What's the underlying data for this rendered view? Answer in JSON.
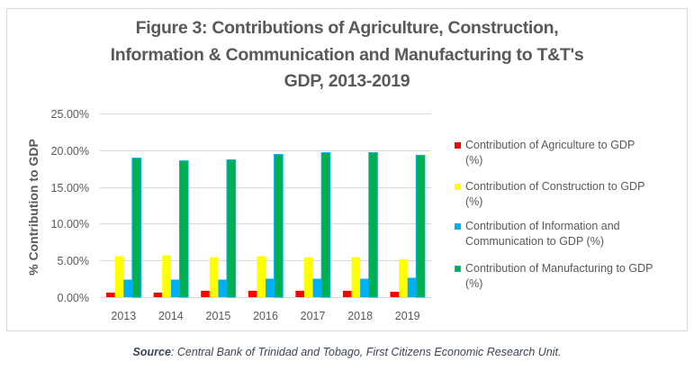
{
  "chart_data": {
    "type": "bar",
    "title": "Figure 3: Contributions of Agriculture, Construction, Information & Communication and Manufacturing to T&T's GDP, 2013-2019",
    "title_lines": [
      "Figure 3: Contributions of Agriculture, Construction,",
      "Information & Communication and Manufacturing to T&T's",
      "GDP, 2013-2019"
    ],
    "xlabel": "",
    "ylabel": "% Contribution to GDP",
    "categories": [
      "2013",
      "2014",
      "2015",
      "2016",
      "2017",
      "2018",
      "2019"
    ],
    "ylim": [
      0,
      25
    ],
    "yticks": [
      0,
      5,
      10,
      15,
      20,
      25
    ],
    "ytick_labels": [
      "0.00%",
      "5.00%",
      "10.00%",
      "15.00%",
      "20.00%",
      "25.00%"
    ],
    "grid": true,
    "legend_position": "right",
    "series": [
      {
        "name": "Contribution of Agriculture to GDP (%)",
        "legend_lines": [
          "Contribution of Agriculture to GDP",
          "(%)"
        ],
        "color": "#ff0000",
        "border": "",
        "values": [
          0.62,
          0.62,
          0.87,
          0.87,
          0.87,
          0.87,
          0.74
        ]
      },
      {
        "name": "Contribution of Construction to GDP (%)",
        "legend_lines": [
          "Contribution of Construction to GDP",
          "(%)"
        ],
        "color": "#ffff00",
        "border": "",
        "values": [
          5.57,
          5.69,
          5.44,
          5.57,
          5.44,
          5.44,
          5.19
        ]
      },
      {
        "name": "Contribution of Information and Communication to GDP (%)",
        "legend_lines": [
          "Contribution of Information and",
          "Communication to GDP (%)"
        ],
        "color": "#00b0f0",
        "border": "",
        "values": [
          2.39,
          2.39,
          2.39,
          2.51,
          2.51,
          2.51,
          2.64
        ]
      },
      {
        "name": "Contribution of Manufacturing to GDP (%)",
        "legend_lines": [
          "Contribution of Manufacturing to GDP",
          "(%)"
        ],
        "color": "#00b050",
        "border": "#00b0f0",
        "values": [
          18.92,
          18.55,
          18.68,
          19.42,
          19.67,
          19.67,
          19.3
        ]
      }
    ],
    "source": {
      "label": "Source",
      "text": ": Central Bank of Trinidad and Tobago, First Citizens Economic Research Unit."
    }
  }
}
